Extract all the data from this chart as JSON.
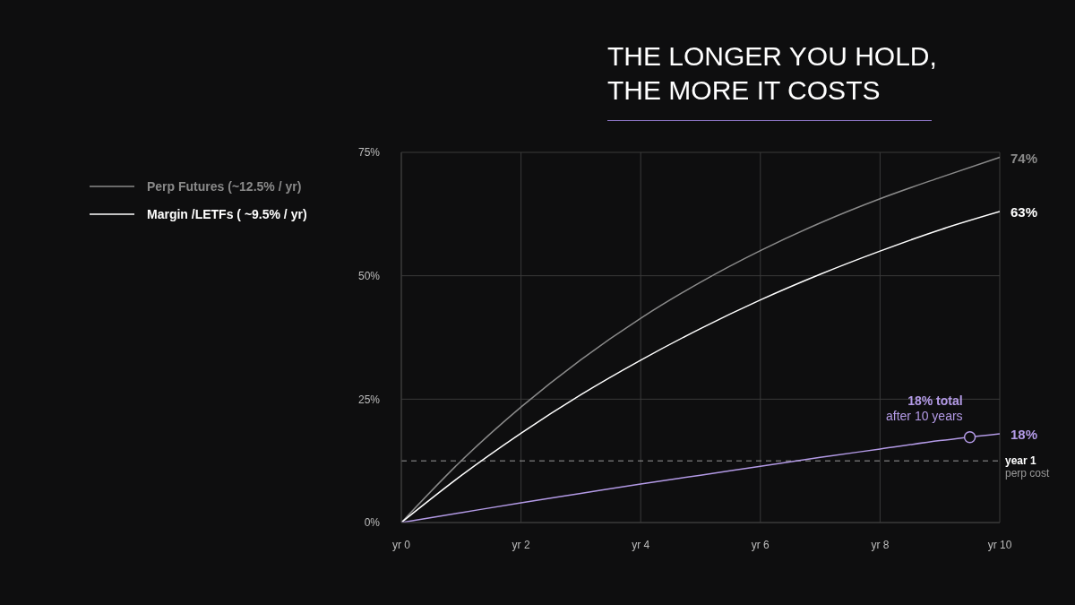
{
  "chart_data": {
    "type": "line",
    "title": "THE LONGER YOU HOLD,\nTHE MORE IT COSTS",
    "categories": [
      "yr 0",
      null,
      "yr 2",
      null,
      "yr 4",
      null,
      "yr 6",
      null,
      "yr 8",
      null,
      "yr 10"
    ],
    "series": [
      {
        "name": "Perp Futures (~12.5% / yr)",
        "color": "#8a8a8a",
        "values": [
          0,
          12.5,
          23.4,
          33.0,
          41.4,
          48.7,
          55.1,
          60.7,
          65.6,
          69.9,
          74
        ],
        "value_labels": [
          null,
          null,
          null,
          null,
          null,
          null,
          null,
          null,
          null,
          null,
          "74%"
        ]
      },
      {
        "name": "Margin /LETFs ( ~9.5% / yr)",
        "color": "#ffffff",
        "values": [
          0,
          9.5,
          18.1,
          25.9,
          32.9,
          39.3,
          45.1,
          50.3,
          55.0,
          59.3,
          63
        ],
        "value_labels": [
          null,
          null,
          null,
          null,
          null,
          null,
          null,
          null,
          null,
          null,
          "63%"
        ]
      },
      {
        "color": "#b39ae6",
        "values": [
          0,
          2.0,
          4.0,
          5.9,
          7.8,
          9.6,
          11.4,
          13.2,
          14.9,
          16.6,
          18
        ],
        "value_labels": [
          null,
          null,
          null,
          null,
          null,
          null,
          null,
          null,
          null,
          null,
          "18%"
        ]
      }
    ],
    "ylim": [
      0,
      75
    ],
    "yticks": [
      {
        "value": 0,
        "label": "0%"
      },
      {
        "value": 25,
        "label": "25%"
      },
      {
        "value": 50,
        "label": "50%"
      },
      {
        "value": 75,
        "label": "75%"
      }
    ],
    "ref_lines": [
      {
        "axis": "y",
        "value": 12.5,
        "label": "year 1\nperp cost",
        "color": "#9a9a9a",
        "line_style": "dashed"
      }
    ],
    "annotations": [
      "18% total\nafter 10 years"
    ],
    "grid": true,
    "legend": "top left"
  }
}
